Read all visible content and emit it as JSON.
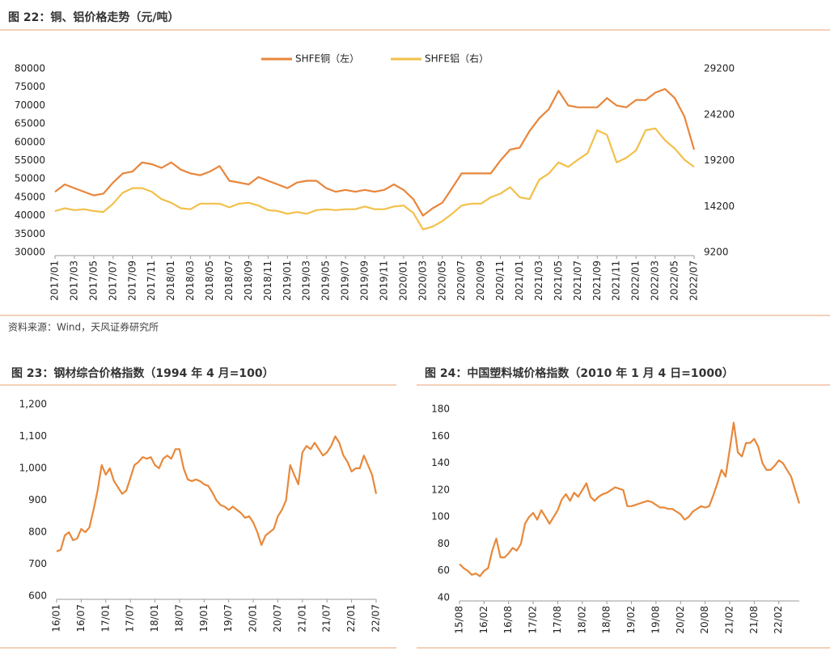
{
  "chart_data": [
    {
      "type": "line",
      "title": "图 22：铜、铝价格走势（元/吨）",
      "source": "资料来源：Wind，天风证券研究所",
      "categories": [
        "2017/01",
        null,
        "2017/03",
        null,
        "2017/05",
        null,
        "2017/07",
        null,
        "2017/09",
        null,
        "2017/11",
        null,
        "2018/01",
        null,
        "2018/03",
        null,
        "2018/05",
        null,
        "2018/07",
        null,
        "2018/09",
        null,
        "2018/11",
        null,
        "2019/01",
        null,
        "2019/03",
        null,
        "2019/05",
        null,
        "2019/07",
        null,
        "2019/09",
        null,
        "2019/11",
        null,
        "2020/01",
        null,
        "2020/03",
        null,
        "2020/05",
        null,
        "2020/07",
        null,
        "2020/09",
        null,
        "2020/11",
        null,
        "2021/01",
        null,
        "2021/03",
        null,
        "2021/05",
        null,
        "2021/07",
        null,
        "2021/09",
        null,
        "2021/11",
        null,
        "2022/01",
        null,
        "2022/03",
        null,
        "2022/05",
        null,
        "2022/07"
      ],
      "series": [
        {
          "name": "SHFE铜（左）",
          "color": "#e8853b",
          "values": [
            46500,
            48500,
            47500,
            46500,
            45500,
            46000,
            49000,
            51500,
            52000,
            54500,
            54000,
            53000,
            54500,
            52500,
            51500,
            51000,
            52000,
            53500,
            49500,
            49000,
            48500,
            50500,
            49500,
            48500,
            47500,
            49000,
            49500,
            49500,
            47500,
            46500,
            47000,
            46500,
            47000,
            46500,
            47000,
            48500,
            47000,
            44500,
            40000,
            42000,
            43500,
            47500,
            51500,
            51500,
            51500,
            51500,
            55000,
            58000,
            58500,
            63000,
            66500,
            69000,
            74000,
            70000,
            69500,
            69500,
            69500,
            72000,
            70000,
            69500,
            71500,
            71500,
            73500,
            74500,
            72000,
            67000,
            58000
          ]
        },
        {
          "name": "SHFE铝（右）",
          "color": "#f2c04a",
          "axis": "y2",
          "values": [
            13700,
            14000,
            13800,
            13900,
            13700,
            13600,
            14500,
            15700,
            16200,
            16200,
            15800,
            15000,
            14600,
            14000,
            13900,
            14500,
            14500,
            14500,
            14100,
            14500,
            14600,
            14300,
            13800,
            13700,
            13400,
            13600,
            13400,
            13800,
            13900,
            13800,
            13900,
            13900,
            14200,
            13900,
            13900,
            14200,
            14300,
            13500,
            11700,
            12000,
            12600,
            13400,
            14300,
            14500,
            14500,
            15200,
            15600,
            16300,
            15200,
            15000,
            17100,
            17800,
            19000,
            18500,
            19300,
            20000,
            22500,
            22000,
            19000,
            19500,
            20300,
            22500,
            22700,
            21400,
            20500,
            19300,
            18500
          ]
        }
      ],
      "ylim": [
        30000,
        80000
      ],
      "yticks": [
        30000,
        35000,
        40000,
        45000,
        50000,
        55000,
        60000,
        65000,
        70000,
        75000,
        80000
      ],
      "y2lim": [
        9200,
        29200
      ],
      "y2ticks": [
        9200,
        14200,
        19200,
        24200,
        29200
      ],
      "legend": "top"
    },
    {
      "type": "line",
      "title": "图 23：钢材综合价格指数（1994 年 4 月=100）",
      "categories": [
        "16/01",
        null,
        null,
        null,
        null,
        null,
        "16/07",
        null,
        null,
        null,
        null,
        null,
        "17/01",
        null,
        null,
        null,
        null,
        null,
        "17/07",
        null,
        null,
        null,
        null,
        null,
        "18/01",
        null,
        null,
        null,
        null,
        null,
        "18/07",
        null,
        null,
        null,
        null,
        null,
        "19/01",
        null,
        null,
        null,
        null,
        null,
        "19/07",
        null,
        null,
        null,
        null,
        null,
        "20/01",
        null,
        null,
        null,
        null,
        null,
        "20/07",
        null,
        null,
        null,
        null,
        null,
        "21/01",
        null,
        null,
        null,
        null,
        null,
        "21/07",
        null,
        null,
        null,
        null,
        null,
        "22/01",
        null,
        null,
        null,
        null,
        null,
        "22/07"
      ],
      "series": [
        {
          "color": "#e8883a",
          "values": [
            740,
            745,
            790,
            800,
            775,
            780,
            810,
            800,
            815,
            870,
            930,
            1010,
            980,
            1000,
            960,
            940,
            920,
            930,
            970,
            1010,
            1020,
            1035,
            1030,
            1035,
            1010,
            1000,
            1030,
            1040,
            1030,
            1060,
            1060,
            1000,
            965,
            960,
            965,
            960,
            950,
            945,
            925,
            900,
            885,
            880,
            870,
            880,
            870,
            860,
            845,
            850,
            830,
            800,
            760,
            790,
            800,
            810,
            850,
            870,
            900,
            1010,
            980,
            950,
            1050,
            1070,
            1060,
            1080,
            1060,
            1040,
            1050,
            1070,
            1100,
            1080,
            1040,
            1020,
            990,
            1000,
            1000,
            1040,
            1010,
            980,
            920
          ]
        }
      ],
      "ylim": [
        600,
        1200
      ],
      "yticks": [
        600,
        700,
        800,
        900,
        {
          "value": 1000,
          "label": "1,000"
        },
        {
          "value": 1100,
          "label": "1,100"
        },
        {
          "value": 1200,
          "label": "1,200"
        }
      ]
    },
    {
      "type": "line",
      "title": "图 24：中国塑料城价格指数（2010 年 1 月 4 日=1000）",
      "categories": [
        "15/08",
        null,
        null,
        null,
        null,
        null,
        "16/02",
        null,
        null,
        null,
        null,
        null,
        "16/08",
        null,
        null,
        null,
        null,
        null,
        "17/02",
        null,
        null,
        null,
        null,
        null,
        "17/08",
        null,
        null,
        null,
        null,
        null,
        "18/02",
        null,
        null,
        null,
        null,
        null,
        "18/08",
        null,
        null,
        null,
        null,
        null,
        "19/02",
        null,
        null,
        null,
        null,
        null,
        "19/08",
        null,
        null,
        null,
        null,
        null,
        "20/02",
        null,
        null,
        null,
        null,
        null,
        "20/08",
        null,
        null,
        null,
        null,
        null,
        "21/02",
        null,
        null,
        null,
        null,
        null,
        "21/08",
        null,
        null,
        null,
        null,
        null,
        "22/02",
        null,
        null,
        null,
        null,
        null
      ],
      "series": [
        {
          "color": "#e8883a",
          "values": [
            65,
            62,
            60,
            57,
            58,
            56,
            60,
            62,
            75,
            84,
            70,
            70,
            73,
            77,
            75,
            80,
            95,
            100,
            103,
            98,
            105,
            100,
            95,
            100,
            105,
            113,
            117,
            112,
            118,
            115,
            120,
            125,
            115,
            112,
            115,
            117,
            118,
            120,
            122,
            121,
            120,
            108,
            108,
            109,
            110,
            111,
            112,
            111,
            109,
            107,
            107,
            106,
            106,
            104,
            102,
            98,
            100,
            104,
            106,
            108,
            107,
            108,
            116,
            125,
            135,
            130,
            150,
            170,
            148,
            145,
            155,
            155,
            158,
            152,
            140,
            135,
            135,
            138,
            142,
            140,
            135,
            130,
            120,
            110
          ]
        }
      ],
      "ylim": [
        40,
        180
      ],
      "yticks": [
        40,
        60,
        80,
        100,
        120,
        140,
        160,
        180
      ]
    }
  ]
}
